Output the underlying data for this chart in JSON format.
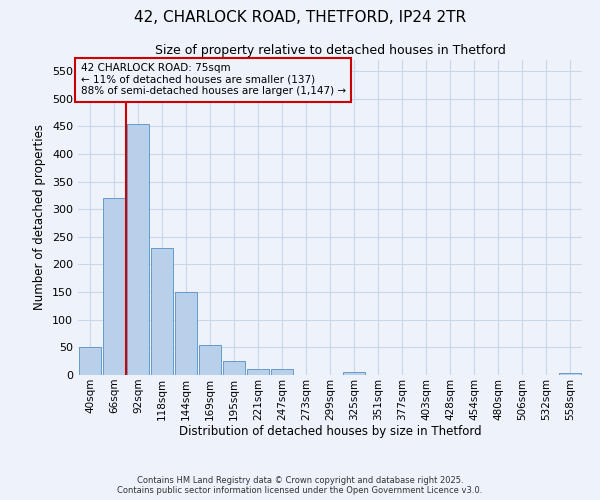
{
  "title_line1": "42, CHARLOCK ROAD, THETFORD, IP24 2TR",
  "title_line2": "Size of property relative to detached houses in Thetford",
  "xlabel": "Distribution of detached houses by size in Thetford",
  "ylabel": "Number of detached properties",
  "bar_labels": [
    "40sqm",
    "66sqm",
    "92sqm",
    "118sqm",
    "144sqm",
    "169sqm",
    "195sqm",
    "221sqm",
    "247sqm",
    "273sqm",
    "299sqm",
    "325sqm",
    "351sqm",
    "377sqm",
    "403sqm",
    "428sqm",
    "454sqm",
    "480sqm",
    "506sqm",
    "532sqm",
    "558sqm"
  ],
  "bar_values": [
    50,
    320,
    455,
    230,
    150,
    55,
    25,
    10,
    10,
    0,
    0,
    5,
    0,
    0,
    0,
    0,
    0,
    0,
    0,
    0,
    4
  ],
  "bar_color": "#b8d0ea",
  "bar_edge_color": "#6699cc",
  "grid_color": "#c8d8ec",
  "background_color": "#eef2fa",
  "vline_x": 1.5,
  "vline_color": "#cc0000",
  "annotation_text": "42 CHARLOCK ROAD: 75sqm\n← 11% of detached houses are smaller (137)\n88% of semi-detached houses are larger (1,147) →",
  "annotation_box_color": "#cc0000",
  "ylim": [
    0,
    570
  ],
  "yticks": [
    0,
    50,
    100,
    150,
    200,
    250,
    300,
    350,
    400,
    450,
    500,
    550
  ],
  "footer_line1": "Contains HM Land Registry data © Crown copyright and database right 2025.",
  "footer_line2": "Contains public sector information licensed under the Open Government Licence v3.0."
}
